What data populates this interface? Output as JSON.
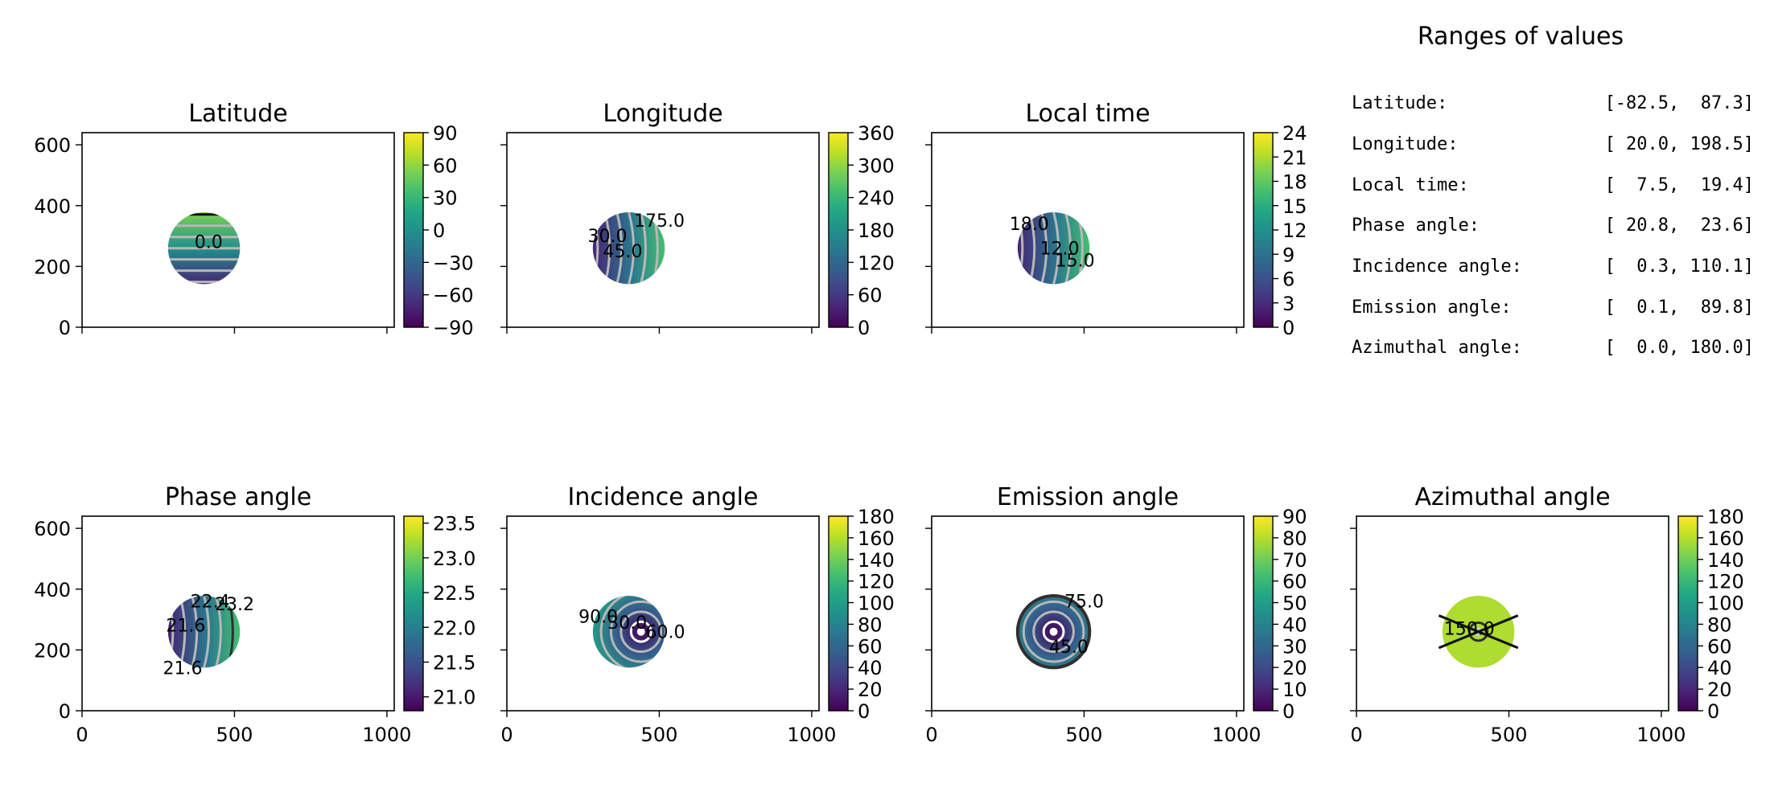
{
  "colors": {
    "axis": "#000000",
    "viridis": [
      "#440154",
      "#482475",
      "#414487",
      "#355f8d",
      "#2a788e",
      "#21918c",
      "#22a884",
      "#44bf70",
      "#7ad151",
      "#bddf26",
      "#fde725"
    ],
    "contour_light": "#b8b8b8",
    "contour_dark": "#303030",
    "disk_background": "#ffffff"
  },
  "ranges_panel": {
    "title": "Ranges of values",
    "rows": [
      {
        "label": "Latitude:",
        "value": "[-82.5,  87.3]"
      },
      {
        "label": "Longitude:",
        "value": "[ 20.0, 198.5]"
      },
      {
        "label": "Local time:",
        "value": "[  7.5,  19.4]"
      },
      {
        "label": "Phase angle:",
        "value": "[ 20.8,  23.6]"
      },
      {
        "label": "Incidence angle:",
        "value": "[  0.3, 110.1]"
      },
      {
        "label": "Emission angle:",
        "value": "[  0.1,  89.8]"
      },
      {
        "label": "Azimuthal angle:",
        "value": "[  0.0, 180.0]"
      }
    ]
  },
  "chart_data": [
    {
      "type": "heatmap",
      "title": "Latitude",
      "xlim": [
        0,
        1024
      ],
      "ylim": [
        0,
        640
      ],
      "xticks": [],
      "yticks": [
        "0",
        "200",
        "400",
        "600"
      ],
      "disk": {
        "center": [
          400,
          260
        ],
        "radius": 118
      },
      "gradient": "vertical",
      "color_range": [
        -90,
        90
      ],
      "colorbar_ticks": [
        "90",
        "60",
        "30",
        "0",
        "−30",
        "−60",
        "−90"
      ],
      "contour_labels": [
        {
          "text": "0.0",
          "x": 415,
          "y": 260,
          "tone": "light"
        }
      ]
    },
    {
      "type": "heatmap",
      "title": "Longitude",
      "xlim": [
        0,
        1024
      ],
      "ylim": [
        0,
        640
      ],
      "xticks": [],
      "yticks": [],
      "disk": {
        "center": [
          400,
          260
        ],
        "radius": 118
      },
      "gradient": "horizontal",
      "color_range": [
        0,
        360
      ],
      "colorbar_ticks": [
        "360",
        "300",
        "240",
        "180",
        "120",
        "60",
        "0"
      ],
      "contour_labels": [
        {
          "text": "175.0",
          "x": 500,
          "y": 330,
          "tone": "light"
        },
        {
          "text": "30.0",
          "x": 330,
          "y": 280,
          "tone": "light"
        },
        {
          "text": "45.0",
          "x": 380,
          "y": 230,
          "tone": "light"
        }
      ]
    },
    {
      "type": "heatmap",
      "title": "Local time",
      "xlim": [
        0,
        1024
      ],
      "ylim": [
        0,
        640
      ],
      "xticks": [],
      "yticks": [],
      "disk": {
        "center": [
          400,
          260
        ],
        "radius": 118
      },
      "gradient": "horizontal",
      "color_range": [
        0,
        24
      ],
      "colorbar_ticks": [
        "24",
        "21",
        "18",
        "15",
        "12",
        "9",
        "6",
        "3",
        "0"
      ],
      "contour_labels": [
        {
          "text": "18.0",
          "x": 320,
          "y": 320,
          "tone": "dark"
        },
        {
          "text": "15.0",
          "x": 470,
          "y": 200,
          "tone": "light"
        },
        {
          "text": "12.0",
          "x": 420,
          "y": 240,
          "tone": "light"
        }
      ]
    },
    {
      "type": "heatmap",
      "title": "Phase angle",
      "xlim": [
        0,
        1024
      ],
      "ylim": [
        0,
        640
      ],
      "xticks": [
        "0",
        "500",
        "1000"
      ],
      "yticks": [
        "0",
        "200",
        "400",
        "600"
      ],
      "disk": {
        "center": [
          400,
          260
        ],
        "radius": 118
      },
      "gradient": "horizontal",
      "color_range": [
        20.8,
        23.6
      ],
      "colorbar_ticks": [
        "23.5",
        "23.0",
        "22.5",
        "22.0",
        "21.5",
        "21.0"
      ],
      "contour_labels": [
        {
          "text": "23.2",
          "x": 500,
          "y": 330,
          "tone": "dark"
        },
        {
          "text": "22.4",
          "x": 420,
          "y": 340,
          "tone": "light"
        },
        {
          "text": "21.6",
          "x": 340,
          "y": 260,
          "tone": "light"
        },
        {
          "text": "21.6",
          "x": 330,
          "y": 120,
          "tone": "light"
        }
      ]
    },
    {
      "type": "heatmap",
      "title": "Incidence angle",
      "xlim": [
        0,
        1024
      ],
      "ylim": [
        0,
        640
      ],
      "xticks": [
        "0",
        "500",
        "1000"
      ],
      "yticks": [],
      "disk": {
        "center": [
          400,
          260
        ],
        "radius": 118
      },
      "gradient": "radial",
      "radial_center": [
        440,
        260
      ],
      "color_range": [
        0,
        180
      ],
      "colorbar_ticks": [
        "180",
        "160",
        "140",
        "120",
        "100",
        "80",
        "60",
        "40",
        "20",
        "0"
      ],
      "contour_labels": [
        {
          "text": "30.0",
          "x": 395,
          "y": 270,
          "tone": "light"
        },
        {
          "text": "60.0",
          "x": 520,
          "y": 240,
          "tone": "light"
        },
        {
          "text": "90.0",
          "x": 300,
          "y": 290,
          "tone": "light"
        }
      ]
    },
    {
      "type": "heatmap",
      "title": "Emission angle",
      "xlim": [
        0,
        1024
      ],
      "ylim": [
        0,
        640
      ],
      "xticks": [
        "0",
        "500",
        "1000"
      ],
      "yticks": [],
      "disk": {
        "center": [
          400,
          260
        ],
        "radius": 118
      },
      "gradient": "radial",
      "radial_center": [
        400,
        260
      ],
      "color_range": [
        0,
        90
      ],
      "colorbar_ticks": [
        "90",
        "80",
        "70",
        "60",
        "50",
        "40",
        "30",
        "20",
        "10",
        "0"
      ],
      "contour_labels": [
        {
          "text": "75.0",
          "x": 500,
          "y": 340,
          "tone": "dark"
        },
        {
          "text": "45.0",
          "x": 450,
          "y": 190,
          "tone": "light"
        }
      ]
    },
    {
      "type": "heatmap",
      "title": "Azimuthal angle",
      "xlim": [
        0,
        1024
      ],
      "ylim": [
        0,
        640
      ],
      "xticks": [
        "0",
        "500",
        "1000"
      ],
      "yticks": [],
      "disk": {
        "center": [
          400,
          260
        ],
        "radius": 118
      },
      "gradient": "uniform",
      "color_range": [
        0,
        180
      ],
      "uniform_value": 158,
      "colorbar_ticks": [
        "180",
        "160",
        "140",
        "120",
        "100",
        "80",
        "60",
        "40",
        "20",
        "0"
      ],
      "contour_labels": [
        {
          "text": "150.0",
          "x": 370,
          "y": 250,
          "tone": "dark"
        }
      ]
    }
  ]
}
